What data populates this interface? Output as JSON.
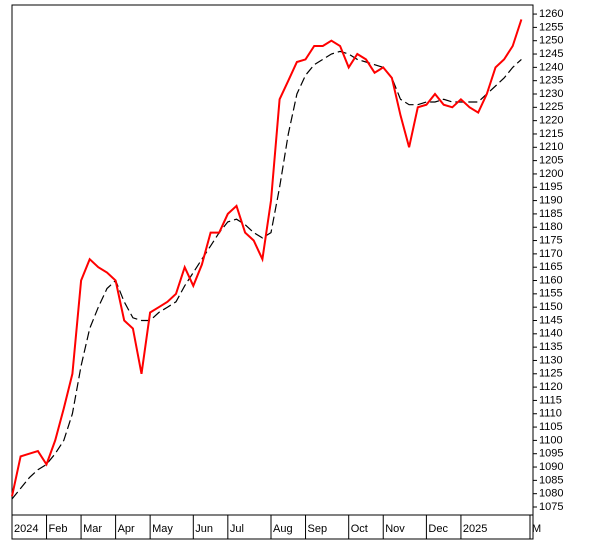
{
  "chart_data": {
    "type": "line",
    "categories": [
      "2024",
      null,
      null,
      null,
      "Feb",
      null,
      null,
      null,
      "Mar",
      null,
      null,
      null,
      "Apr",
      null,
      null,
      null,
      "May",
      null,
      null,
      null,
      null,
      "Jun",
      null,
      null,
      null,
      "Jul",
      null,
      null,
      null,
      null,
      "Aug",
      null,
      null,
      null,
      "Sep",
      null,
      null,
      null,
      null,
      "Oct",
      null,
      null,
      null,
      "Nov",
      null,
      null,
      null,
      null,
      "Dec",
      null,
      null,
      null,
      "2025",
      null,
      null,
      null,
      null,
      null,
      null,
      null,
      "M"
    ],
    "series": [
      {
        "color": "#ff0000",
        "dashed": false,
        "values": [
          1079,
          1094,
          1095,
          1096,
          1091,
          1100,
          1112,
          1125,
          1160,
          1168,
          1165,
          1163,
          1160,
          1145,
          1142,
          1125,
          1148,
          1150,
          1152,
          1155,
          1165,
          1158,
          1166,
          1178,
          1178,
          1185,
          1188,
          1178,
          1175,
          1168,
          1190,
          1228,
          1235,
          1242,
          1243,
          1248,
          1248,
          1250,
          1248,
          1240,
          1245,
          1243,
          1238,
          1240,
          1236,
          1222,
          1210,
          1225,
          1226,
          1230,
          1226,
          1225,
          1228,
          1225,
          1223,
          1230,
          1240,
          1243,
          1248,
          1258,
          null
        ]
      },
      {
        "color": "#000000",
        "dashed": true,
        "values": [
          1078,
          1082,
          1086,
          1089,
          1091,
          1095,
          1100,
          1110,
          1128,
          1142,
          1150,
          1157,
          1160,
          1152,
          1146,
          1145,
          1145,
          1148,
          1150,
          1152,
          1158,
          1163,
          1168,
          1173,
          1178,
          1182,
          1183,
          1181,
          1178,
          1176,
          1178,
          1195,
          1215,
          1230,
          1237,
          1241,
          1243,
          1245,
          1246,
          1245,
          1243,
          1242,
          1241,
          1240,
          1236,
          1228,
          1226,
          1226,
          1227,
          1227,
          1228,
          1227,
          1227,
          1227,
          1227,
          1230,
          1233,
          1236,
          1240,
          1243,
          null
        ]
      }
    ],
    "ylim": [
      1072,
      1263.4
    ],
    "yticks": [
      1075,
      1080,
      1085,
      1090,
      1095,
      1100,
      1105,
      1110,
      1115,
      1120,
      1125,
      1130,
      1135,
      1140,
      1145,
      1150,
      1155,
      1160,
      1165,
      1170,
      1175,
      1180,
      1185,
      1190,
      1195,
      1200,
      1205,
      1210,
      1215,
      1220,
      1225,
      1230,
      1235,
      1240,
      1245,
      1250,
      1255,
      1260
    ],
    "grid": false
  }
}
